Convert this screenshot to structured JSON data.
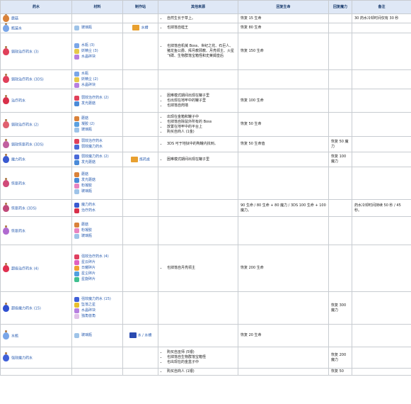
{
  "headers": [
    "药水",
    "材料",
    "制作站",
    "其他来源",
    "回复生命",
    "回复魔力",
    "备注"
  ],
  "rows": [
    {
      "name": "蘑菇",
      "color": "#d9823a",
      "materials": [],
      "station": "",
      "sources": [
        "自然生长于草上。"
      ],
      "life": "恢复 15 生命",
      "mana": "",
      "notes": "30 药水冷却时间仅有 30 秒"
    },
    {
      "name": "瓶装水",
      "color": "#7aa6e8",
      "materials": [
        {
          "text": "玻璃瓶",
          "color": "#9ec3e8"
        }
      ],
      "station": "水槽",
      "sources": [
        "也掉落自蛙王"
      ],
      "life": "恢复 80 生命",
      "mana": "",
      "notes": ""
    },
    {
      "name": "弱效治疗药水 (3)",
      "color": "#e0405a",
      "materials": [
        {
          "text": "水瓶 (3)",
          "color": "#7aa6e8"
        },
        {
          "text": "妖精尘 (3)",
          "color": "#e6c84a"
        },
        {
          "text": "水晶碎块",
          "color": "#b77fe0"
        }
      ],
      "station": "",
      "sources": [
        "也掉落自机械 Boss、世纪之花、石巨人、猪龙鱼公爵、拜月教邪教、月亮领主、火星飞碟、生物群落宝箱怪和史莱姆皇后"
      ],
      "life": "恢复 150 生命",
      "mana": "",
      "notes": ""
    },
    {
      "name": "弱效治疗药水 (3DS)",
      "color": "#e0405a",
      "materials": [
        {
          "text": "水瓶",
          "color": "#7aa6e8"
        },
        {
          "text": "妖精尘 (2)",
          "color": "#e6c84a"
        },
        {
          "text": "水晶碎块",
          "color": "#b77fe0"
        }
      ],
      "station": "",
      "sources": [],
      "life": "",
      "mana": "",
      "notes": ""
    },
    {
      "name": "治疗药水",
      "color": "#d8304a",
      "materials": [
        {
          "text": "弱效治疗药水 (2)",
          "color": "#e0405a"
        },
        {
          "text": "发光蘑菇",
          "color": "#4a8ad8"
        }
      ],
      "station": "",
      "sources": [
        "困难模式期间出现在罐子里",
        "也出现在地牢中的罐子里",
        "也掉落自肉墙"
      ],
      "life": "恢复 100 生命",
      "mana": "",
      "notes": ""
    },
    {
      "name": "弱效治疗药水 (2)",
      "color": "#e06070",
      "materials": [
        {
          "text": "蘑菇",
          "color": "#d9823a"
        },
        {
          "text": "凝胶 (2)",
          "color": "#5aa0e0"
        },
        {
          "text": "玻璃瓶",
          "color": "#9ec3e8"
        }
      ],
      "station": "",
      "sources": [
        "出现在金箱和罐子中",
        "也掉落自除鼠外所有的 Boss",
        "放置在地牢中的平台上",
        "购买自商人 (1金)"
      ],
      "life": "恢复 50 生命",
      "mana": "",
      "notes": ""
    },
    {
      "name": "弱效恢复药水 (3DS)",
      "color": "#c060a0",
      "materials": [
        {
          "text": "弱效治疗药水",
          "color": "#e0405a"
        },
        {
          "text": "弱效魔力药水",
          "color": "#4a6ad8"
        }
      ],
      "station": "",
      "sources": [
        "3DS 可于地狱中的陶罐内找到。"
      ],
      "life": "恢复 50 生命值",
      "mana": "恢复 50 魔力",
      "notes": ""
    },
    {
      "name": "魔力药水",
      "color": "#3a5ad0",
      "materials": [
        {
          "text": "弱效魔力药水 (2)",
          "color": "#4a6ad8"
        },
        {
          "text": "发光蘑菇",
          "color": "#4a8ad8"
        }
      ],
      "station": "炼药桌",
      "sources": [
        "困难模式期间出现在罐子里"
      ],
      "life": "",
      "mana": "恢复 100 魔力",
      "notes": ""
    },
    {
      "name": "恢复药水",
      "color": "#d04a7a",
      "materials": [
        {
          "text": "蘑菇",
          "color": "#d9823a"
        },
        {
          "text": "发光蘑菇",
          "color": "#4a8ad8"
        },
        {
          "text": "粉凝胶",
          "color": "#e884c0"
        },
        {
          "text": "玻璃瓶",
          "color": "#9ec3e8"
        }
      ],
      "station": "",
      "sources": [],
      "life": "",
      "mana": "",
      "notes": ""
    },
    {
      "name": "恢复药水 (3DS)",
      "color": "#c04a7a",
      "materials": [
        {
          "text": "魔力药水",
          "color": "#3a5ad0"
        },
        {
          "text": "治疗药水",
          "color": "#d8304a"
        }
      ],
      "station": "",
      "sources": [],
      "life": "90 生命 / 80 生命 + 80 魔力 / 3DS 100 生命 + 100 魔力。",
      "mana": "",
      "notes": "药水冷却时间持续 50 秒 / 45 秒。"
    },
    {
      "name": "恢复药水",
      "color": "#b06ad0",
      "materials": [
        {
          "text": "蘑菇",
          "color": "#d9823a"
        },
        {
          "text": "粉凝胶",
          "color": "#e884c0"
        },
        {
          "text": "玻璃瓶",
          "color": "#9ec3e8"
        }
      ],
      "station": "",
      "sources": [],
      "life": "",
      "mana": "",
      "notes": ""
    },
    {
      "name": "超级治疗药水 (4)",
      "color": "#e03050",
      "materials": [
        {
          "text": "强效治疗药水 (4)",
          "color": "#e04060"
        },
        {
          "text": "星云碎片",
          "color": "#e060c0"
        },
        {
          "text": "日耀碎片",
          "color": "#f0a030"
        },
        {
          "text": "星尘碎片",
          "color": "#50a0e0"
        },
        {
          "text": "星旋碎片",
          "color": "#40c090"
        }
      ],
      "station": "",
      "sources": [
        "也掉落自月亮领主"
      ],
      "life": "恢复 200 生命",
      "mana": "",
      "notes": ""
    },
    {
      "name": "超级魔力药水 (15)",
      "color": "#3050d0",
      "materials": [
        {
          "text": "强效魔力药水 (15)",
          "color": "#4060d8"
        },
        {
          "text": "坠落之星",
          "color": "#e8c030"
        },
        {
          "text": "水晶碎块",
          "color": "#b77fe0"
        },
        {
          "text": "独角兽角",
          "color": "#e0c0e8"
        }
      ],
      "station": "",
      "sources": [],
      "life": "",
      "mana": "恢复 300 魔力",
      "notes": ""
    },
    {
      "name": "水瓶",
      "color": "#7aa6e8",
      "materials": [
        {
          "text": "玻璃瓶",
          "color": "#9ec3e8"
        }
      ],
      "station": "水 / 水槽",
      "sources": [],
      "life": "恢复 20 生命",
      "mana": "",
      "notes": ""
    },
    {
      "name": "强效魔力药水",
      "color": "#4060d8",
      "materials": [],
      "station": "",
      "sources": [
        "购买自巫师 (5银)",
        "也掉落自生物群落宝箱怪",
        "也出现在的金盒子中"
      ],
      "life": "",
      "mana": "恢复 200 魔力",
      "notes": ""
    },
    {
      "name": "",
      "color": "#d04a4a",
      "materials": [],
      "station": "",
      "sources": [
        "购买自商人 (1银)"
      ],
      "life": "",
      "mana": "恢复 50",
      "notes": ""
    }
  ]
}
